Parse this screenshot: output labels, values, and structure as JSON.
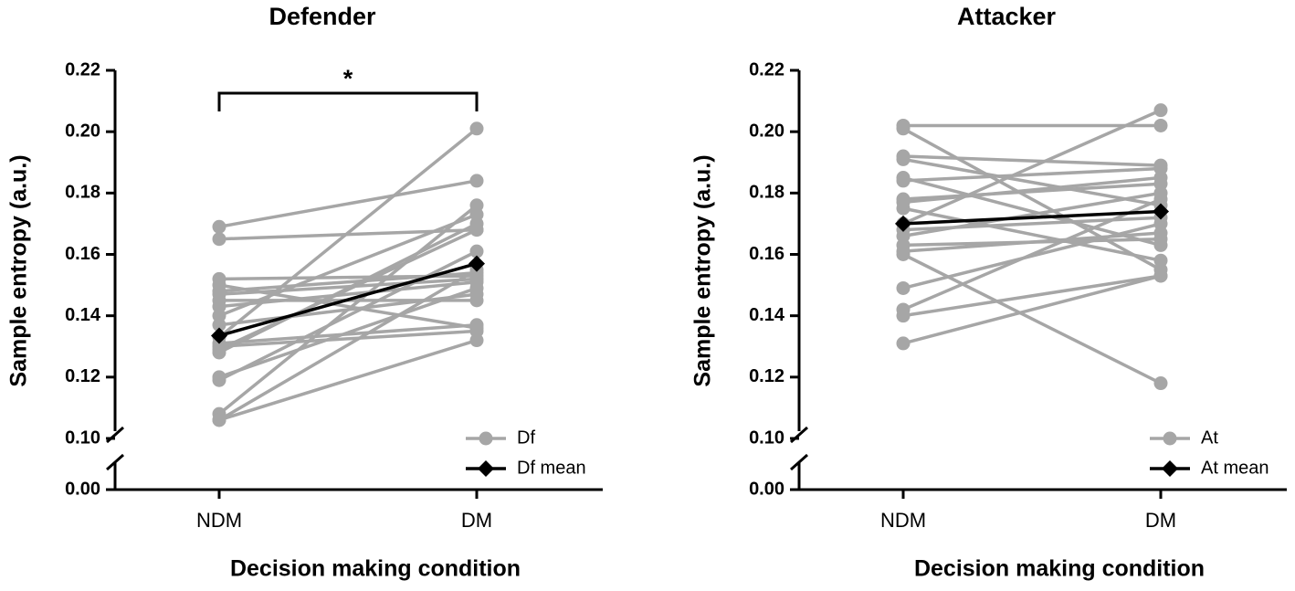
{
  "chart_data": [
    {
      "type": "line",
      "title": "Defender",
      "xlabel": "Decision making condition",
      "ylabel": "Sample entropy (a.u.)",
      "categories": [
        "NDM",
        "DM"
      ],
      "series": [
        {
          "name": "Df",
          "color": "#a6a6a6",
          "marker": "circle",
          "values": [
            [
              0.169,
              0.184
            ],
            [
              0.165,
              0.168
            ],
            [
              0.152,
              0.153
            ],
            [
              0.15,
              0.136
            ],
            [
              0.148,
              0.154
            ],
            [
              0.145,
              0.145
            ],
            [
              0.143,
              0.151
            ],
            [
              0.14,
              0.173
            ],
            [
              0.137,
              0.147
            ],
            [
              0.133,
              0.201
            ],
            [
              0.13,
              0.135
            ],
            [
              0.128,
              0.17
            ],
            [
              0.12,
              0.149
            ],
            [
              0.119,
              0.161
            ],
            [
              0.108,
              0.176
            ],
            [
              0.106,
              0.155
            ],
            [
              0.106,
              0.132
            ],
            [
              0.129,
              0.168
            ],
            [
              0.147,
              0.152
            ],
            [
              0.131,
              0.137
            ]
          ]
        },
        {
          "name": "Df mean",
          "color": "#000000",
          "marker": "diamond",
          "values": [
            0.1335,
            0.157
          ]
        }
      ],
      "ylim": [
        0,
        0.22
      ],
      "ybreak": 0.1,
      "yticks": [
        {
          "value": 0,
          "label": "0.00"
        },
        {
          "value": 0.1,
          "label": "0.10"
        },
        {
          "value": 0.12,
          "label": "0.12"
        },
        {
          "value": 0.14,
          "label": "0.14"
        },
        {
          "value": 0.16,
          "label": "0.16"
        },
        {
          "value": 0.18,
          "label": "0.18"
        },
        {
          "value": 0.2,
          "label": "0.20"
        },
        {
          "value": 0.22,
          "label": "0.22"
        }
      ],
      "annotations": [
        {
          "text": "*",
          "from": "NDM",
          "to": "DM"
        }
      ],
      "legend": "bottom-right"
    },
    {
      "type": "line",
      "title": "Attacker",
      "xlabel": "Decision making condition",
      "ylabel": "Sample entropy (a.u.)",
      "categories": [
        "NDM",
        "DM"
      ],
      "series": [
        {
          "name": "At",
          "color": "#a6a6a6",
          "marker": "circle",
          "values": [
            [
              0.202,
              0.202
            ],
            [
              0.201,
              0.155
            ],
            [
              0.192,
              0.189
            ],
            [
              0.191,
              0.176
            ],
            [
              0.185,
              0.163
            ],
            [
              0.184,
              0.188
            ],
            [
              0.178,
              0.183
            ],
            [
              0.177,
              0.185
            ],
            [
              0.175,
              0.158
            ],
            [
              0.17,
              0.207
            ],
            [
              0.168,
              0.172
            ],
            [
              0.166,
              0.18
            ],
            [
              0.163,
              0.165
            ],
            [
              0.161,
              0.167
            ],
            [
              0.16,
              0.118
            ],
            [
              0.149,
              0.17
            ],
            [
              0.142,
              0.178
            ],
            [
              0.14,
              0.153
            ],
            [
              0.131,
              0.153
            ]
          ]
        },
        {
          "name": "At mean",
          "color": "#000000",
          "marker": "diamond",
          "values": [
            0.17,
            0.174
          ]
        }
      ],
      "ylim": [
        0,
        0.22
      ],
      "ybreak": 0.1,
      "yticks": [
        {
          "value": 0,
          "label": "0.00"
        },
        {
          "value": 0.1,
          "label": "0.10"
        },
        {
          "value": 0.12,
          "label": "0.12"
        },
        {
          "value": 0.14,
          "label": "0.14"
        },
        {
          "value": 0.16,
          "label": "0.16"
        },
        {
          "value": 0.18,
          "label": "0.18"
        },
        {
          "value": 0.2,
          "label": "0.20"
        },
        {
          "value": 0.22,
          "label": "0.22"
        }
      ],
      "annotations": [],
      "legend": "bottom-right"
    }
  ]
}
